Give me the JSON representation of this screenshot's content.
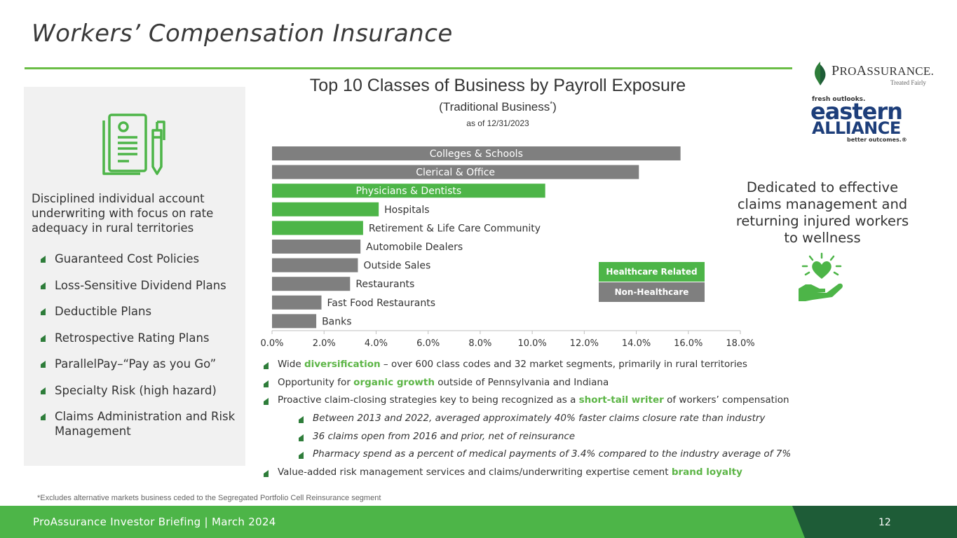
{
  "title": "Workers’ Compensation Insurance",
  "logos": {
    "proassurance_name_prefix": "P",
    "proassurance_name_mid": "RO",
    "proassurance_name_a": "A",
    "proassurance_name_rest": "SSURANCE.",
    "proassurance_tagline": "Treated Fairly",
    "eastern_top": "fresh outlooks.",
    "eastern_word1": "eastern",
    "eastern_word2": "ALLIANCE",
    "eastern_bottom": "better outcomes.®"
  },
  "left_panel": {
    "description": "Disciplined individual account underwriting with focus on rate adequacy in rural territories",
    "items": [
      "Guaranteed Cost Policies",
      "Loss-Sensitive Dividend Plans",
      "Deductible Plans",
      "Retrospective Rating Plans",
      "ParallelPay–“Pay as you Go”",
      "Specialty Risk (high hazard)",
      "Claims Administration and Risk Management"
    ]
  },
  "chart_heading": {
    "title": "Top 10 Classes of Business by Payroll Exposure",
    "subtitle_pre": "(Traditional Business",
    "subtitle_sup": "*",
    "subtitle_post": ")",
    "date": "as of 12/31/2023"
  },
  "chart_data": {
    "type": "bar",
    "orientation": "horizontal",
    "categories": [
      "Colleges & Schools",
      "Clerical & Office",
      "Physicians & Dentists",
      "Hospitals",
      "Retirement & Life Care Community",
      "Automobile Dealers",
      "Outside Sales",
      "Restaurants",
      "Fast Food Restaurants",
      "Banks"
    ],
    "values": [
      15.7,
      14.1,
      10.5,
      4.1,
      3.5,
      3.4,
      3.3,
      3.0,
      1.9,
      1.7
    ],
    "groups": [
      "Non-Healthcare",
      "Non-Healthcare",
      "Healthcare Related",
      "Healthcare Related",
      "Healthcare Related",
      "Non-Healthcare",
      "Non-Healthcare",
      "Non-Healthcare",
      "Non-Healthcare",
      "Non-Healthcare"
    ],
    "xlim": [
      0,
      18
    ],
    "xticks": [
      "0.0%",
      "2.0%",
      "4.0%",
      "6.0%",
      "8.0%",
      "10.0%",
      "12.0%",
      "14.0%",
      "16.0%",
      "18.0%"
    ],
    "legend": [
      {
        "name": "Healthcare Related",
        "color": "#4db548"
      },
      {
        "name": "Non-Healthcare",
        "color": "#7f7f7f"
      }
    ],
    "legend_position": "right",
    "grid": false
  },
  "right_panel": {
    "dedicated_text": "Dedicated to effective claims management and returning injured workers to wellness"
  },
  "bottom_bullets": [
    {
      "parts": [
        {
          "t": "Wide "
        },
        {
          "t": "diversification",
          "hl": true
        },
        {
          "t": " – over 600 class codes and 32 market segments, primarily in rural territories"
        }
      ]
    },
    {
      "parts": [
        {
          "t": "Opportunity for "
        },
        {
          "t": "organic growth",
          "hl": true
        },
        {
          "t": " outside of Pennsylvania and Indiana"
        }
      ]
    },
    {
      "parts": [
        {
          "t": "Proactive claim-closing strategies key to being recognized as a "
        },
        {
          "t": "short-tail writer",
          "hl": true
        },
        {
          "t": " of workers’ compensation"
        }
      ]
    },
    {
      "sub": true,
      "parts": [
        {
          "t": "Between 2013 and 2022, averaged approximately 40% faster claims closure rate than industry"
        }
      ]
    },
    {
      "sub": true,
      "parts": [
        {
          "t": "36 claims open from 2016 and prior, net of reinsurance"
        }
      ]
    },
    {
      "sub": true,
      "parts": [
        {
          "t": "Pharmacy spend as a percent of medical payments of 3.4% compared to the industry average of 7%"
        }
      ]
    },
    {
      "parts": [
        {
          "t": "Value-added risk management services and claims/underwriting expertise cement "
        },
        {
          "t": "brand loyalty",
          "hl": true
        }
      ]
    }
  ],
  "footnote": "*Excludes alternative markets business ceded to the Segregated Portfolio Cell Reinsurance segment",
  "footer": {
    "text": "ProAssurance Investor Briefing | March 2024",
    "page_number": "12"
  },
  "colors": {
    "accent_green": "#4db548",
    "dark_green": "#1e5c37",
    "bar_gray": "#7f7f7f",
    "highlight_green": "#5cb546"
  },
  "icons": {
    "document": "document-pen-icon",
    "hand_heart": "hand-heart-icon",
    "bullet": "leaf-bullet-icon"
  }
}
